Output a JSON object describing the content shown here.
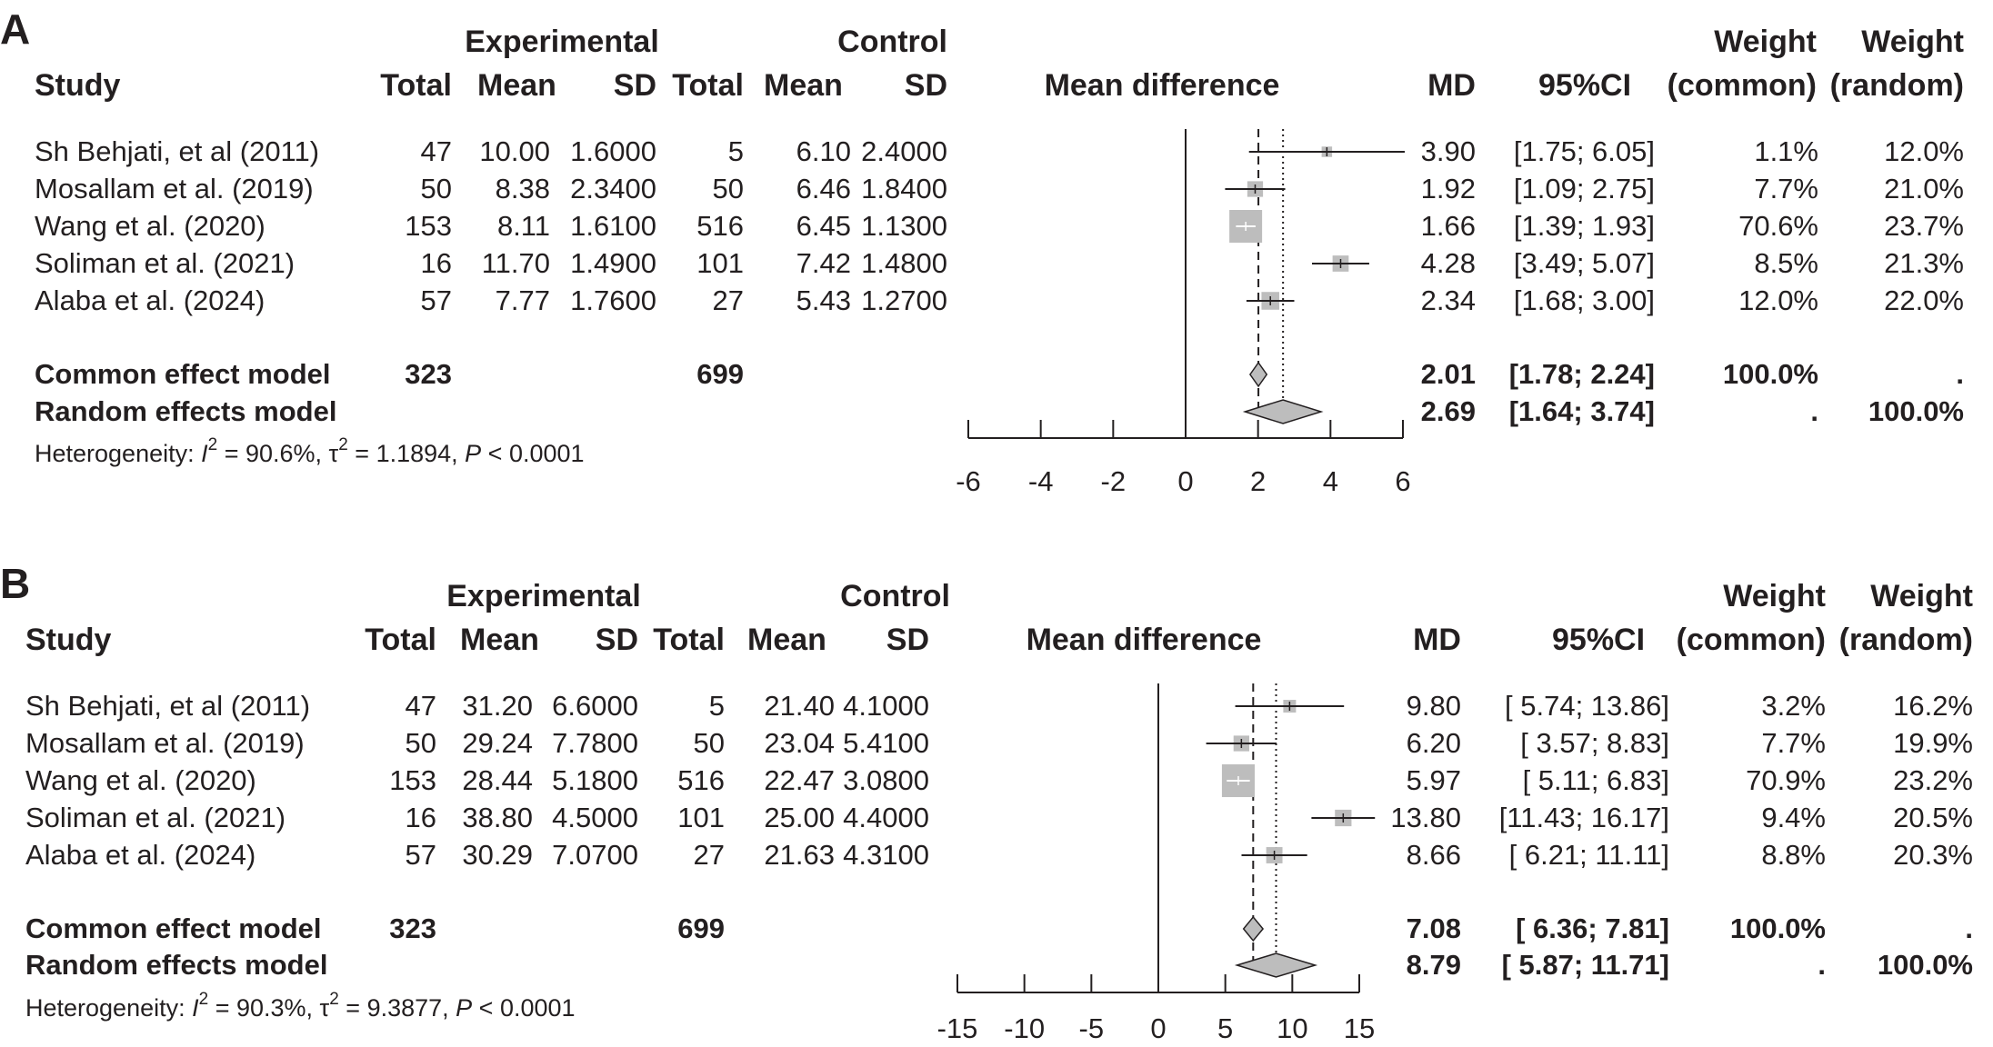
{
  "chart_data": [
    {
      "type": "forest",
      "panel_label": "A",
      "headers": {
        "experimental": "Experimental",
        "control": "Control",
        "study": "Study",
        "total": "Total",
        "mean": "Mean",
        "sd": "SD",
        "mean_difference": "Mean difference",
        "md": "MD",
        "ci": "95%CI",
        "weight": "Weight",
        "common": "(common)",
        "random": "(random)"
      },
      "studies": [
        {
          "name": "Sh Behjati, et al (2011)",
          "e_total": "47",
          "e_mean": "10.00",
          "e_sd": "1.6000",
          "c_total": "5",
          "c_mean": "6.10",
          "c_sd": "2.4000",
          "md": 3.9,
          "lower": 1.75,
          "upper": 6.05,
          "md_text": "3.90",
          "ci_text": "[1.75; 6.05]",
          "w_common": "1.1%",
          "w_random": "12.0%",
          "w": 1.1
        },
        {
          "name": "Mosallam et al. (2019)",
          "e_total": "50",
          "e_mean": "8.38",
          "e_sd": "2.3400",
          "c_total": "50",
          "c_mean": "6.46",
          "c_sd": "1.8400",
          "md": 1.92,
          "lower": 1.09,
          "upper": 2.75,
          "md_text": "1.92",
          "ci_text": "[1.09; 2.75]",
          "w_common": "7.7%",
          "w_random": "21.0%",
          "w": 7.7
        },
        {
          "name": "Wang et al. (2020)",
          "e_total": "153",
          "e_mean": "8.11",
          "e_sd": "1.6100",
          "c_total": "516",
          "c_mean": "6.45",
          "c_sd": "1.1300",
          "md": 1.66,
          "lower": 1.39,
          "upper": 1.93,
          "md_text": "1.66",
          "ci_text": "[1.39; 1.93]",
          "w_common": "70.6%",
          "w_random": "23.7%",
          "w": 70.6
        },
        {
          "name": "Soliman et al. (2021)",
          "e_total": "16",
          "e_mean": "11.70",
          "e_sd": "1.4900",
          "c_total": "101",
          "c_mean": "7.42",
          "c_sd": "1.4800",
          "md": 4.28,
          "lower": 3.49,
          "upper": 5.07,
          "md_text": "4.28",
          "ci_text": "[3.49; 5.07]",
          "w_common": "8.5%",
          "w_random": "21.3%",
          "w": 8.5
        },
        {
          "name": "Alaba et al. (2024)",
          "e_total": "57",
          "e_mean": "7.77",
          "e_sd": "1.7600",
          "c_total": "27",
          "c_mean": "5.43",
          "c_sd": "1.2700",
          "md": 2.34,
          "lower": 1.68,
          "upper": 3.0,
          "md_text": "2.34",
          "ci_text": "[1.68; 3.00]",
          "w_common": "12.0%",
          "w_random": "22.0%",
          "w": 12.0
        }
      ],
      "common": {
        "label": "Common effect model",
        "e_total": "323",
        "c_total": "699",
        "md": 2.01,
        "lower": 1.78,
        "upper": 2.24,
        "md_text": "2.01",
        "ci_text": "[1.78; 2.24]",
        "w_common": "100.0%",
        "w_random": "."
      },
      "random": {
        "label": "Random effects model",
        "md": 2.69,
        "lower": 1.64,
        "upper": 3.74,
        "md_text": "2.69",
        "ci_text": "[1.64; 3.74]",
        "w_common": ".",
        "w_random": "100.0%"
      },
      "heterogeneity": {
        "prefix": "Heterogeneity: ",
        "i2": "= 90.6%, ",
        "tau2": "= 1.1894, ",
        "p": "< 0.0001"
      },
      "xlim": [
        -6,
        6
      ],
      "ticks": [
        -6,
        -4,
        -2,
        0,
        2,
        4,
        6
      ]
    },
    {
      "type": "forest",
      "panel_label": "B",
      "headers": {
        "experimental": "Experimental",
        "control": "Control",
        "study": "Study",
        "total": "Total",
        "mean": "Mean",
        "sd": "SD",
        "mean_difference": "Mean difference",
        "md": "MD",
        "ci": "95%CI",
        "weight": "Weight",
        "common": "(common)",
        "random": "(random)"
      },
      "studies": [
        {
          "name": "Sh Behjati, et al (2011)",
          "e_total": "47",
          "e_mean": "31.20",
          "e_sd": "6.6000",
          "c_total": "5",
          "c_mean": "21.40",
          "c_sd": "4.1000",
          "md": 9.8,
          "lower": 5.74,
          "upper": 13.86,
          "md_text": "9.80",
          "ci_text": "[ 5.74; 13.86]",
          "w_common": "3.2%",
          "w_random": "16.2%",
          "w": 3.2
        },
        {
          "name": "Mosallam et al. (2019)",
          "e_total": "50",
          "e_mean": "29.24",
          "e_sd": "7.7800",
          "c_total": "50",
          "c_mean": "23.04",
          "c_sd": "5.4100",
          "md": 6.2,
          "lower": 3.57,
          "upper": 8.83,
          "md_text": "6.20",
          "ci_text": "[ 3.57; 8.83]",
          "w_common": "7.7%",
          "w_random": "19.9%",
          "w": 7.7
        },
        {
          "name": "Wang et al. (2020)",
          "e_total": "153",
          "e_mean": "28.44",
          "e_sd": "5.1800",
          "c_total": "516",
          "c_mean": "22.47",
          "c_sd": "3.0800",
          "md": 5.97,
          "lower": 5.11,
          "upper": 6.83,
          "md_text": "5.97",
          "ci_text": "[ 5.11; 6.83]",
          "w_common": "70.9%",
          "w_random": "23.2%",
          "w": 70.9
        },
        {
          "name": "Soliman et al. (2021)",
          "e_total": "16",
          "e_mean": "38.80",
          "e_sd": "4.5000",
          "c_total": "101",
          "c_mean": "25.00",
          "c_sd": "4.4000",
          "md": 13.8,
          "lower": 11.43,
          "upper": 16.17,
          "md_text": "13.80",
          "ci_text": "[11.43; 16.17]",
          "w_common": "9.4%",
          "w_random": "20.5%",
          "w": 9.4
        },
        {
          "name": "Alaba et al. (2024)",
          "e_total": "57",
          "e_mean": "30.29",
          "e_sd": "7.0700",
          "c_total": "27",
          "c_mean": "21.63",
          "c_sd": "4.3100",
          "md": 8.66,
          "lower": 6.21,
          "upper": 11.11,
          "md_text": "8.66",
          "ci_text": "[ 6.21; 11.11]",
          "w_common": "8.8%",
          "w_random": "20.3%",
          "w": 8.8
        }
      ],
      "common": {
        "label": "Common effect model",
        "e_total": "323",
        "c_total": "699",
        "md": 7.08,
        "lower": 6.36,
        "upper": 7.81,
        "md_text": "7.08",
        "ci_text": "[ 6.36; 7.81]",
        "w_common": "100.0%",
        "w_random": "."
      },
      "random": {
        "label": "Random effects model",
        "md": 8.79,
        "lower": 5.87,
        "upper": 11.71,
        "md_text": "8.79",
        "ci_text": "[ 5.87; 11.71]",
        "w_common": ".",
        "w_random": "100.0%"
      },
      "heterogeneity": {
        "prefix": "Heterogeneity: ",
        "i2": "= 90.3%, ",
        "tau2": "= 9.3877, ",
        "p": "< 0.0001"
      },
      "xlim": [
        -15,
        15
      ],
      "ticks": [
        -15,
        -10,
        -5,
        0,
        5,
        10,
        15
      ]
    }
  ]
}
